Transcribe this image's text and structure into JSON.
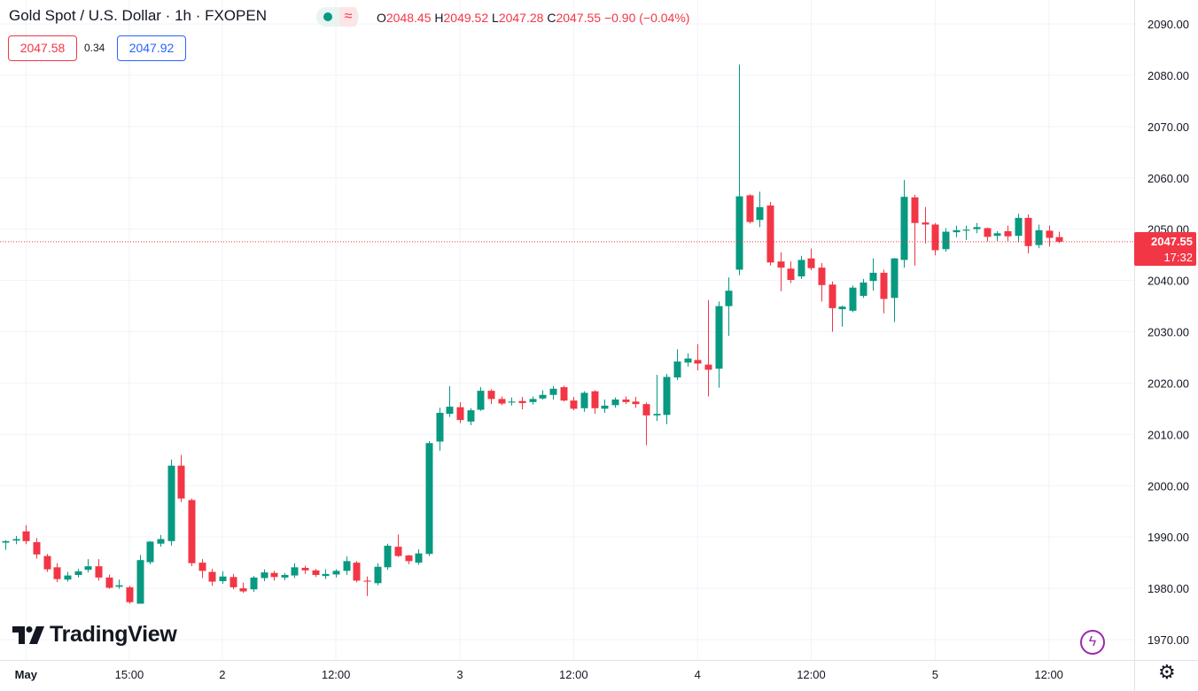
{
  "header": {
    "title": "Gold Spot / U.S. Dollar · 1h · FXOPEN",
    "ohlc": {
      "o_label": "O",
      "o": "2048.45",
      "h_label": "H",
      "h": "2049.52",
      "l_label": "L",
      "l": "2047.28",
      "c_label": "C",
      "c": "2047.55",
      "change": "−0.90 (−0.04%)"
    },
    "bid": "2047.58",
    "spread": "0.34",
    "ask": "2047.92",
    "indicator_icons": [
      "dot-icon",
      "wave-icon"
    ]
  },
  "last_price": {
    "price": "2047.55",
    "countdown": "17:32",
    "value": 2047.55
  },
  "logo": {
    "text": "TradingView"
  },
  "colors": {
    "up": "#089981",
    "down": "#f23645",
    "grid": "#f0f3fa",
    "text": "#131722",
    "bid": "#f23645",
    "ask": "#2962ff"
  },
  "chart_data": {
    "type": "candlestick",
    "ylim": [
      1967,
      2092
    ],
    "y_ticks": [
      "2090.00",
      "2080.00",
      "2070.00",
      "2060.00",
      "2050.00",
      "2040.00",
      "2030.00",
      "2020.00",
      "2010.00",
      "2000.00",
      "1990.00",
      "1980.00",
      "1970.00"
    ],
    "y_tick_values": [
      2090,
      2080,
      2070,
      2060,
      2050,
      2040,
      2030,
      2020,
      2010,
      2000,
      1990,
      1980,
      1970
    ],
    "x_ticks": [
      {
        "label": "May",
        "index": 2
      },
      {
        "label": "15:00",
        "index": 12
      },
      {
        "label": "2",
        "index": 21
      },
      {
        "label": "12:00",
        "index": 32
      },
      {
        "label": "3",
        "index": 44
      },
      {
        "label": "12:00",
        "index": 55
      },
      {
        "label": "4",
        "index": 67
      },
      {
        "label": "12:00",
        "index": 78
      },
      {
        "label": "5",
        "index": 90
      },
      {
        "label": "12:00",
        "index": 101
      }
    ],
    "candles": [
      [
        1988.9,
        1989.4,
        1987.5,
        1989.2
      ],
      [
        1989.3,
        1990.2,
        1988.6,
        1989.6
      ],
      [
        1991.1,
        1992.3,
        1988.6,
        1989.2
      ],
      [
        1989.0,
        1989.8,
        1985.8,
        1986.6
      ],
      [
        1986.3,
        1986.7,
        1983.2,
        1983.7
      ],
      [
        1984.1,
        1984.9,
        1981.2,
        1981.8
      ],
      [
        1981.7,
        1983.2,
        1981.3,
        1982.5
      ],
      [
        1982.6,
        1983.8,
        1982.1,
        1983.3
      ],
      [
        1983.6,
        1985.7,
        1983.1,
        1984.3
      ],
      [
        1984.3,
        1985.7,
        1981.5,
        1982.1
      ],
      [
        1982.1,
        1982.7,
        1979.9,
        1980.1
      ],
      [
        1980.3,
        1981.7,
        1979.9,
        1980.6
      ],
      [
        1980.2,
        1980.5,
        1977.0,
        1977.3
      ],
      [
        1977.0,
        1986.5,
        1977.0,
        1985.5
      ],
      [
        1985.1,
        1989.2,
        1984.7,
        1989.1
      ],
      [
        1988.7,
        1990.4,
        1988.1,
        1989.6
      ],
      [
        1989.2,
        2005.1,
        1988.3,
        2003.9
      ],
      [
        2003.9,
        2006.0,
        1996.8,
        1997.5
      ],
      [
        1997.2,
        1997.5,
        1984.3,
        1984.9
      ],
      [
        1985.0,
        1985.7,
        1982.0,
        1983.4
      ],
      [
        1983.2,
        1983.8,
        1980.5,
        1981.3
      ],
      [
        1981.4,
        1983.3,
        1980.9,
        1982.3
      ],
      [
        1982.2,
        1982.8,
        1979.8,
        1980.2
      ],
      [
        1980.0,
        1981.1,
        1979.1,
        1979.4
      ],
      [
        1979.8,
        1982.4,
        1979.3,
        1982.1
      ],
      [
        1982.0,
        1983.7,
        1981.4,
        1983.1
      ],
      [
        1983.0,
        1983.4,
        1981.5,
        1982.2
      ],
      [
        1982.1,
        1983.0,
        1981.6,
        1982.6
      ],
      [
        1982.5,
        1984.9,
        1982.0,
        1984.1
      ],
      [
        1984.0,
        1984.4,
        1982.8,
        1983.5
      ],
      [
        1983.5,
        1983.8,
        1982.2,
        1982.6
      ],
      [
        1982.4,
        1983.7,
        1981.8,
        1982.8
      ],
      [
        1982.7,
        1983.7,
        1982.1,
        1983.4
      ],
      [
        1983.4,
        1986.2,
        1982.6,
        1985.3
      ],
      [
        1985.0,
        1985.3,
        1981.2,
        1981.5
      ],
      [
        1981.5,
        1982.3,
        1978.5,
        1981.3
      ],
      [
        1981.0,
        1984.9,
        1980.6,
        1984.2
      ],
      [
        1984.1,
        1988.7,
        1983.6,
        1988.3
      ],
      [
        1988.1,
        1990.5,
        1986.1,
        1986.3
      ],
      [
        1986.4,
        1986.5,
        1984.7,
        1985.3
      ],
      [
        1985.0,
        1987.6,
        1984.6,
        1986.8
      ],
      [
        1986.7,
        2008.7,
        1986.3,
        2008.3
      ],
      [
        2008.6,
        2015.2,
        2006.8,
        2014.2
      ],
      [
        2014.0,
        2019.4,
        2013.4,
        2015.4
      ],
      [
        2015.3,
        2016.3,
        2012.2,
        2012.8
      ],
      [
        2012.5,
        2015.1,
        2011.8,
        2014.7
      ],
      [
        2014.8,
        2019.2,
        2014.6,
        2018.5
      ],
      [
        2018.5,
        2018.8,
        2015.9,
        2016.9
      ],
      [
        2016.9,
        2017.4,
        2015.7,
        2016.0
      ],
      [
        2016.2,
        2017.2,
        2015.6,
        2016.4
      ],
      [
        2016.5,
        2017.3,
        2014.9,
        2016.1
      ],
      [
        2016.3,
        2017.4,
        2015.8,
        2016.9
      ],
      [
        2017.0,
        2018.6,
        2016.8,
        2017.7
      ],
      [
        2017.7,
        2019.4,
        2016.8,
        2018.9
      ],
      [
        2019.2,
        2019.5,
        2016.4,
        2016.6
      ],
      [
        2016.6,
        2017.3,
        2014.7,
        2015.0
      ],
      [
        2015.1,
        2018.4,
        2014.4,
        2018.1
      ],
      [
        2018.4,
        2018.6,
        2014.0,
        2015.1
      ],
      [
        2015.0,
        2016.8,
        2014.2,
        2015.6
      ],
      [
        2015.7,
        2017.2,
        2015.2,
        2016.8
      ],
      [
        2016.8,
        2017.4,
        2015.9,
        2016.3
      ],
      [
        2016.4,
        2017.3,
        2015.2,
        2015.9
      ],
      [
        2015.9,
        2016.2,
        2007.9,
        2013.7
      ],
      [
        2013.7,
        2021.6,
        2012.6,
        2014.0
      ],
      [
        2013.8,
        2021.8,
        2012.0,
        2021.2
      ],
      [
        2021.1,
        2026.6,
        2020.6,
        2024.2
      ],
      [
        2024.0,
        2025.8,
        2023.2,
        2024.8
      ],
      [
        2024.5,
        2027.6,
        2022.5,
        2023.8
      ],
      [
        2023.6,
        2036.2,
        2017.4,
        2022.6
      ],
      [
        2022.8,
        2035.9,
        2019.1,
        2035.0
      ],
      [
        2035.0,
        2040.6,
        2029.2,
        2038.0
      ],
      [
        2042.1,
        2082.1,
        2041.0,
        2056.4
      ],
      [
        2056.6,
        2056.8,
        2051.1,
        2051.4
      ],
      [
        2051.8,
        2057.3,
        2050.4,
        2054.3
      ],
      [
        2054.6,
        2055.3,
        2042.9,
        2043.5
      ],
      [
        2043.7,
        2045.5,
        2037.9,
        2042.5
      ],
      [
        2042.3,
        2043.7,
        2039.5,
        2040.1
      ],
      [
        2040.8,
        2044.8,
        2040.3,
        2044.0
      ],
      [
        2044.3,
        2046.2,
        2042.0,
        2042.4
      ],
      [
        2042.5,
        2043.4,
        2035.9,
        2039.1
      ],
      [
        2039.2,
        2039.8,
        2030.0,
        2034.6
      ],
      [
        2034.4,
        2035.1,
        2031.0,
        2034.9
      ],
      [
        2034.1,
        2039.0,
        2033.8,
        2038.6
      ],
      [
        2037.0,
        2040.3,
        2036.6,
        2039.6
      ],
      [
        2039.9,
        2044.3,
        2038.0,
        2041.5
      ],
      [
        2041.5,
        2042.1,
        2033.6,
        2036.4
      ],
      [
        2036.6,
        2044.4,
        2031.9,
        2044.3
      ],
      [
        2044.0,
        2059.6,
        2042.5,
        2056.3
      ],
      [
        2056.2,
        2056.7,
        2042.9,
        2051.2
      ],
      [
        2051.3,
        2054.3,
        2047.2,
        2050.9
      ],
      [
        2050.9,
        2051.2,
        2044.9,
        2045.9
      ],
      [
        2046.1,
        2050.2,
        2045.6,
        2049.5
      ],
      [
        2049.4,
        2050.7,
        2048.4,
        2049.8
      ],
      [
        2049.7,
        2050.7,
        2047.9,
        2049.9
      ],
      [
        2050.0,
        2051.2,
        2049.2,
        2050.4
      ],
      [
        2050.2,
        2050.3,
        2047.6,
        2048.5
      ],
      [
        2048.7,
        2049.6,
        2047.7,
        2049.2
      ],
      [
        2049.6,
        2050.7,
        2047.7,
        2048.6
      ],
      [
        2048.7,
        2053.0,
        2047.4,
        2052.2
      ],
      [
        2052.2,
        2052.9,
        2045.3,
        2046.7
      ],
      [
        2046.9,
        2050.9,
        2046.3,
        2049.8
      ],
      [
        2049.7,
        2050.7,
        2046.6,
        2048.3
      ],
      [
        2048.45,
        2049.52,
        2047.28,
        2047.55
      ]
    ]
  }
}
